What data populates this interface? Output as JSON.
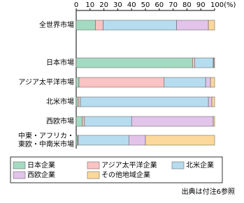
{
  "chart_data": {
    "type": "stacked-bar-horizontal",
    "categories": [
      "全世界市場",
      null,
      "日本市場",
      "アジア太平洋市場",
      "北米市場",
      "西欧市場",
      "中東・アフリカ・\n東欧・中南米市場"
    ],
    "series": [
      {
        "name": "日本企業",
        "color": "#a3dbc2",
        "values": [
          14,
          null,
          84,
          2,
          1.5,
          4.5,
          1
        ]
      },
      {
        "name": "アジア太平洋企業",
        "color": "#fbc3c3",
        "values": [
          5.5,
          null,
          1.5,
          61.5,
          1.5,
          1.5,
          0.5
        ]
      },
      {
        "name": "北米企業",
        "color": "#b6dcef",
        "values": [
          53,
          null,
          13.5,
          30,
          92.5,
          34,
          36.5
        ]
      },
      {
        "name": "西欧企業",
        "color": "#e2c4ea",
        "values": [
          23,
          null,
          0.5,
          3.5,
          2.5,
          59,
          12
        ]
      },
      {
        "name": "その他地域企業",
        "color": "#fcd89c",
        "values": [
          4.5,
          null,
          0.5,
          3,
          2,
          1,
          50
        ]
      }
    ],
    "xlim": [
      0,
      100
    ],
    "xticks": [
      0,
      10,
      20,
      30,
      40,
      50,
      60,
      70,
      80,
      90,
      {
        "value": 100,
        "label": "100(%)"
      }
    ],
    "source": "出典は付注6参照"
  }
}
